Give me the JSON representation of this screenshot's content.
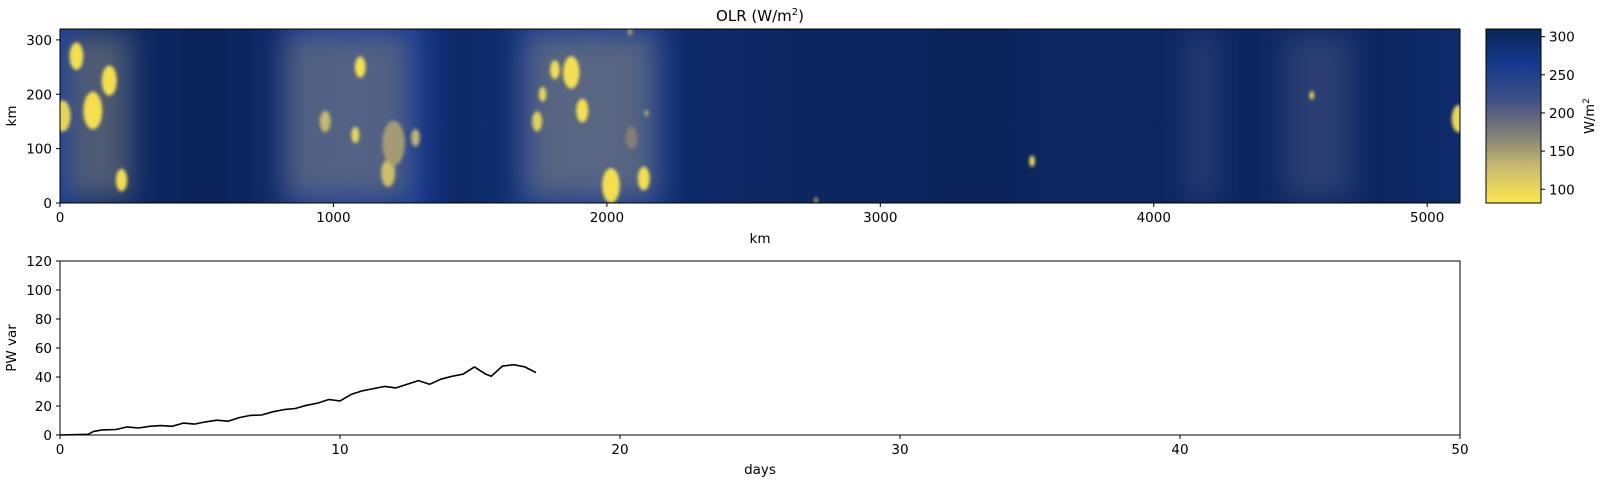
{
  "chart_data": [
    {
      "type": "heatmap",
      "title": "OLR (W/m",
      "title_sup": "2",
      "title_end": ")",
      "xlabel": "km",
      "ylabel": "km",
      "xlim": [
        0,
        5120
      ],
      "ylim": [
        0,
        320
      ],
      "xticks": [
        0,
        1000,
        2000,
        3000,
        4000,
        5000
      ],
      "yticks": [
        0,
        100,
        200,
        300
      ],
      "colorbar": {
        "label": "W/m",
        "label_sup": "2",
        "range": [
          82,
          310
        ],
        "ticks": [
          100,
          150,
          200,
          250,
          300
        ],
        "colors": [
          "#fde74c",
          "#cbbd6e",
          "#7f7d78",
          "#3d4f86",
          "#143a8c",
          "#0a2557"
        ]
      },
      "background_field": [
        [
          0,
          0.3
        ],
        [
          120,
          0.12
        ],
        [
          300,
          0.05
        ],
        [
          560,
          0.0
        ],
        [
          760,
          0.08
        ],
        [
          900,
          0.28
        ],
        [
          1050,
          0.32
        ],
        [
          1300,
          0.28
        ],
        [
          1450,
          0.06
        ],
        [
          1620,
          0.12
        ],
        [
          1720,
          0.26
        ],
        [
          1950,
          0.3
        ],
        [
          2150,
          0.26
        ],
        [
          2300,
          0.08
        ],
        [
          2600,
          0.05
        ],
        [
          2800,
          0.04
        ],
        [
          3100,
          0.03
        ],
        [
          3400,
          0.0
        ],
        [
          3600,
          0.05
        ],
        [
          3900,
          0.05
        ],
        [
          4200,
          0.04
        ],
        [
          4600,
          0.03
        ],
        [
          4900,
          0.05
        ],
        [
          5120,
          0.1
        ]
      ],
      "convective_cells": [
        {
          "x": 120,
          "y": 170,
          "r": 30,
          "v": 82
        },
        {
          "x": 180,
          "y": 225,
          "r": 24,
          "v": 82
        },
        {
          "x": 60,
          "y": 270,
          "r": 22,
          "v": 82
        },
        {
          "x": 10,
          "y": 160,
          "r": 25,
          "v": 95
        },
        {
          "x": 225,
          "y": 42,
          "r": 18,
          "v": 82
        },
        {
          "x": 1098,
          "y": 250,
          "r": 17,
          "v": 82
        },
        {
          "x": 1080,
          "y": 125,
          "r": 13,
          "v": 95
        },
        {
          "x": 1200,
          "y": 55,
          "r": 22,
          "v": 120
        },
        {
          "x": 1220,
          "y": 110,
          "r": 36,
          "v": 150
        },
        {
          "x": 970,
          "y": 150,
          "r": 17,
          "v": 125
        },
        {
          "x": 1300,
          "y": 120,
          "r": 14,
          "v": 130
        },
        {
          "x": 1870,
          "y": 240,
          "r": 26,
          "v": 82
        },
        {
          "x": 1910,
          "y": 170,
          "r": 19,
          "v": 82
        },
        {
          "x": 1810,
          "y": 245,
          "r": 15,
          "v": 82
        },
        {
          "x": 1765,
          "y": 200,
          "r": 12,
          "v": 95
        },
        {
          "x": 1745,
          "y": 150,
          "r": 16,
          "v": 100
        },
        {
          "x": 2015,
          "y": 32,
          "r": 28,
          "v": 82
        },
        {
          "x": 2135,
          "y": 45,
          "r": 19,
          "v": 82
        },
        {
          "x": 2145,
          "y": 165,
          "r": 5,
          "v": 110
        },
        {
          "x": 2090,
          "y": 120,
          "r": 18,
          "v": 170
        },
        {
          "x": 3555,
          "y": 77,
          "r": 9,
          "v": 82
        },
        {
          "x": 4578,
          "y": 198,
          "r": 7,
          "v": 82
        },
        {
          "x": 5115,
          "y": 155,
          "r": 22,
          "v": 90
        },
        {
          "x": 2765,
          "y": 5,
          "r": 5,
          "v": 110
        },
        {
          "x": 2085,
          "y": 315,
          "r": 6,
          "v": 130
        }
      ],
      "cloudy_regions": [
        {
          "x0": 0,
          "x1": 280,
          "v": 170
        },
        {
          "x0": 800,
          "x1": 1300,
          "v": 170
        },
        {
          "x0": 1680,
          "x1": 2200,
          "v": 165
        },
        {
          "x0": 4100,
          "x1": 4250,
          "v": 215
        },
        {
          "x0": 4450,
          "x1": 4750,
          "v": 215
        }
      ]
    },
    {
      "type": "line",
      "xlabel": "days",
      "ylabel": "PW var",
      "xlim": [
        0,
        50
      ],
      "ylim": [
        0,
        120
      ],
      "xticks": [
        0,
        10,
        20,
        30,
        40,
        50
      ],
      "yticks": [
        0,
        20,
        40,
        60,
        80,
        100,
        120
      ],
      "x": [
        0,
        0.5,
        1.0,
        1.2,
        1.5,
        2.0,
        2.4,
        2.8,
        3.2,
        3.6,
        4.0,
        4.4,
        4.8,
        5.2,
        5.6,
        6.0,
        6.4,
        6.8,
        7.2,
        7.6,
        8.0,
        8.4,
        8.8,
        9.2,
        9.6,
        10.0,
        10.4,
        10.8,
        11.2,
        11.6,
        12.0,
        12.4,
        12.8,
        13.2,
        13.6,
        14.0,
        14.4,
        14.8,
        15.2,
        15.4,
        15.8,
        16.2,
        16.6,
        17.0
      ],
      "y": [
        0,
        0.2,
        0.5,
        2.5,
        3.5,
        3.8,
        5.6,
        4.8,
        6.0,
        6.5,
        6.0,
        8.2,
        7.5,
        9.0,
        10.2,
        9.5,
        12.0,
        13.5,
        13.8,
        16.0,
        17.5,
        18.3,
        20.5,
        22.0,
        24.5,
        23.5,
        28.0,
        30.5,
        32.0,
        33.5,
        32.5,
        35.0,
        37.5,
        35.0,
        38.5,
        40.5,
        42.0,
        47.0,
        42.0,
        40.5,
        47.5,
        48.5,
        47.0,
        43.0
      ]
    }
  ]
}
